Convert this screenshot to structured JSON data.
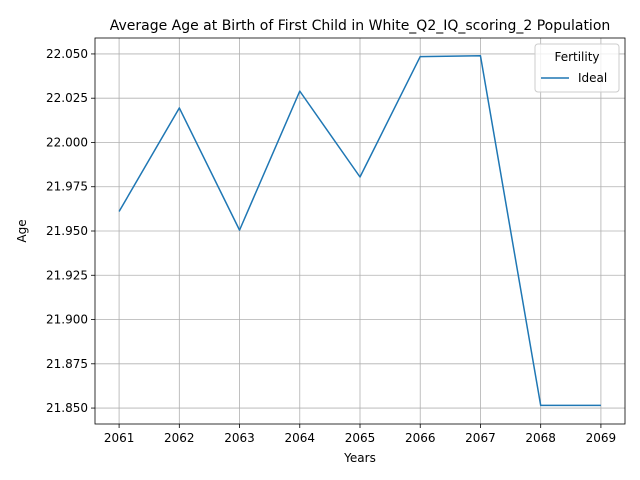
{
  "chart_data": {
    "type": "line",
    "title": "Average Age at Birth of First Child in White_Q2_IQ_scoring_2 Population",
    "xlabel": "Years",
    "ylabel": "Age",
    "x": [
      2061,
      2062,
      2063,
      2064,
      2065,
      2066,
      2067,
      2068,
      2069
    ],
    "series": [
      {
        "name": "Ideal",
        "color": "#1f77b4",
        "values": [
          21.961,
          22.0195,
          21.9505,
          22.029,
          21.9805,
          22.0485,
          22.049,
          21.8515,
          21.8515
        ]
      }
    ],
    "xlim": [
      2060.6,
      2069.4
    ],
    "ylim": [
      21.841,
      22.059
    ],
    "yticks": [
      "21.850",
      "21.875",
      "21.900",
      "21.925",
      "21.950",
      "21.975",
      "22.000",
      "22.025",
      "22.050"
    ],
    "xticks": [
      "2061",
      "2062",
      "2063",
      "2064",
      "2065",
      "2066",
      "2067",
      "2068",
      "2069"
    ],
    "grid": true,
    "legend": {
      "title": "Fertility",
      "placement": "top-right"
    }
  }
}
